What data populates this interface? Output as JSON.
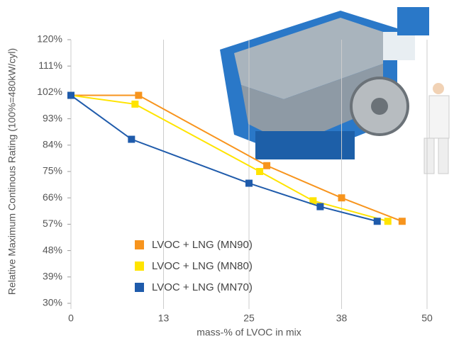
{
  "chart_data": {
    "type": "line",
    "x_label": "mass-% of LVOC in mix",
    "y_label": "Relative Maximum Continous Rating (100%=480kW/cyl)",
    "xlim": [
      0,
      50
    ],
    "xticks": [
      0,
      13,
      25,
      38,
      50
    ],
    "ylim": [
      30,
      120
    ],
    "yticks": [
      {
        "value": 30,
        "label": "30%"
      },
      {
        "value": 39,
        "label": "39%"
      },
      {
        "value": 48,
        "label": "48%"
      },
      {
        "value": 57,
        "label": "57%"
      },
      {
        "value": 66,
        "label": "66%"
      },
      {
        "value": 75,
        "label": "75%"
      },
      {
        "value": 84,
        "label": "84%"
      },
      {
        "value": 93,
        "label": "93%"
      },
      {
        "value": 102,
        "label": "102%"
      },
      {
        "value": 111,
        "label": "111%"
      },
      {
        "value": 120,
        "label": "120%"
      }
    ],
    "grid": true,
    "legend": "lower left",
    "series": [
      {
        "name": "LVOC + LNG (MN90)",
        "color": "#f7941d",
        "x": [
          0,
          9.5,
          27.5,
          38,
          46.5
        ],
        "values": [
          101,
          101,
          77,
          66,
          58
        ]
      },
      {
        "name": "LVOC + LNG (MN80)",
        "color": "#ffe400",
        "x": [
          0,
          9,
          26.5,
          34,
          44.5
        ],
        "values": [
          101,
          98,
          75,
          65,
          58
        ]
      },
      {
        "name": "LVOC + LNG (MN70)",
        "color": "#1f5bab",
        "x": [
          0,
          8.5,
          25,
          35,
          43
        ],
        "values": [
          101,
          86,
          71,
          63,
          58
        ]
      }
    ]
  }
}
